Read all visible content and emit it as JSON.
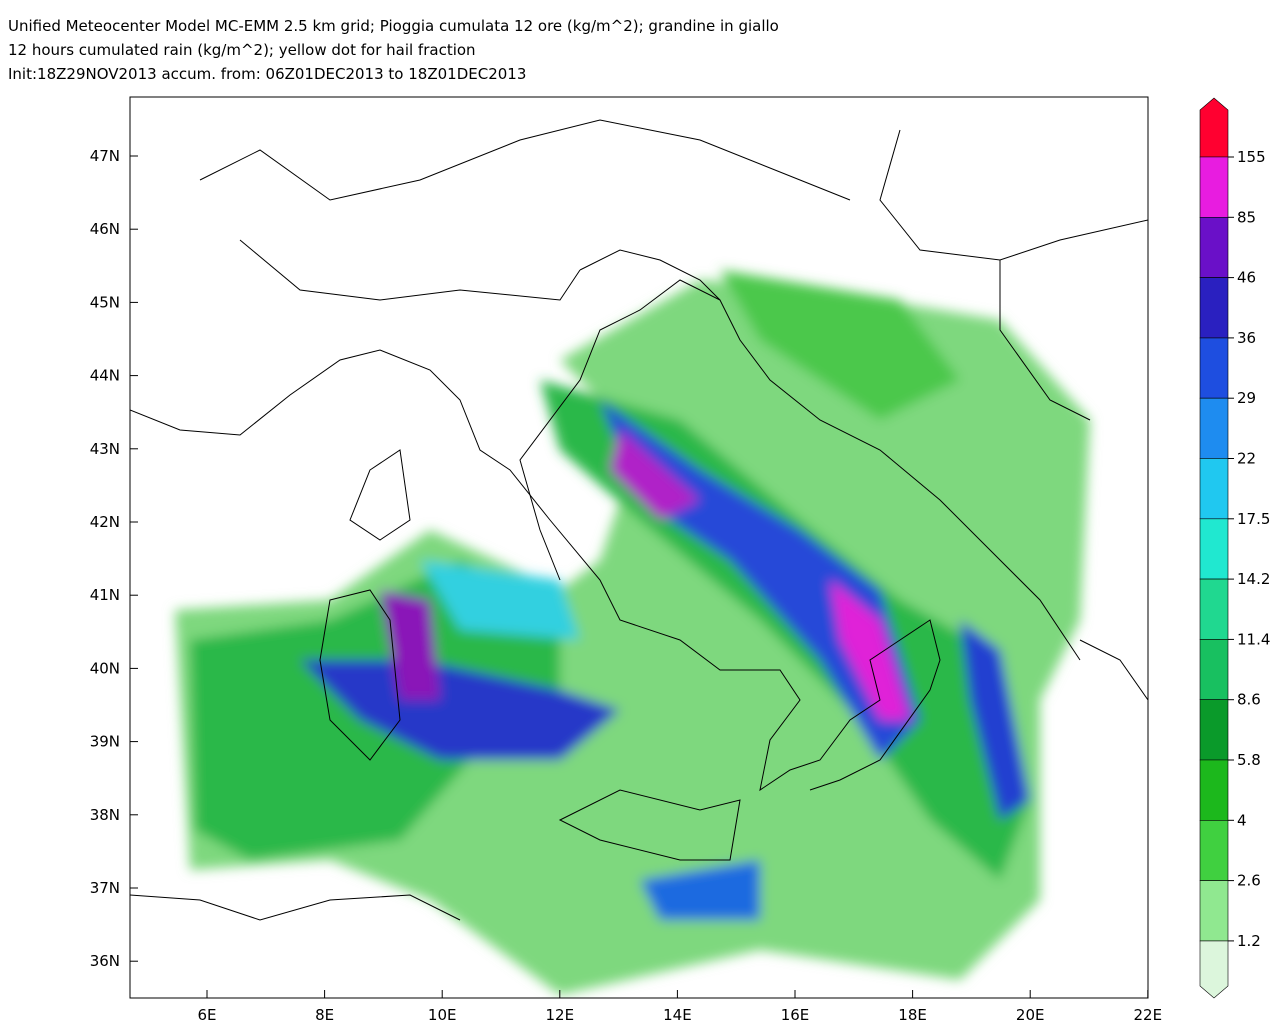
{
  "header": {
    "lines": [
      "Unified Meteocenter Model MC-EMM 2.5 km grid; Pioggia cumulata 12 ore (kg/m^2); grandine in giallo",
      "12 hours cumulated rain (kg/m^2); yellow dot for hail fraction",
      "Init:18Z29NOV2013 accum. from: 06Z01DEC2013 to 18Z01DEC2013"
    ]
  },
  "map": {
    "lon_labels": [
      "6E",
      "8E",
      "10E",
      "12E",
      "14E",
      "16E",
      "18E",
      "20E",
      "22E"
    ],
    "lat_labels": [
      "47N",
      "46N",
      "45N",
      "44N",
      "43N",
      "42N",
      "41N",
      "40N",
      "39N",
      "38N",
      "37N",
      "36N"
    ]
  },
  "colorbar": {
    "labels": [
      155,
      85,
      46,
      36,
      29,
      22,
      17.5,
      14.2,
      11.4,
      8.6,
      5.8,
      4,
      2.6,
      1.2
    ],
    "colors": [
      "#ff0030",
      "#e81ce0",
      "#6a10c8",
      "#2a20c0",
      "#1e4ee0",
      "#1e8cf0",
      "#20c8f0",
      "#20e8d0",
      "#20d890",
      "#18c060",
      "#0a9a2a",
      "#1cb81c",
      "#40d040",
      "#90e890",
      "#dcf6dc"
    ]
  }
}
